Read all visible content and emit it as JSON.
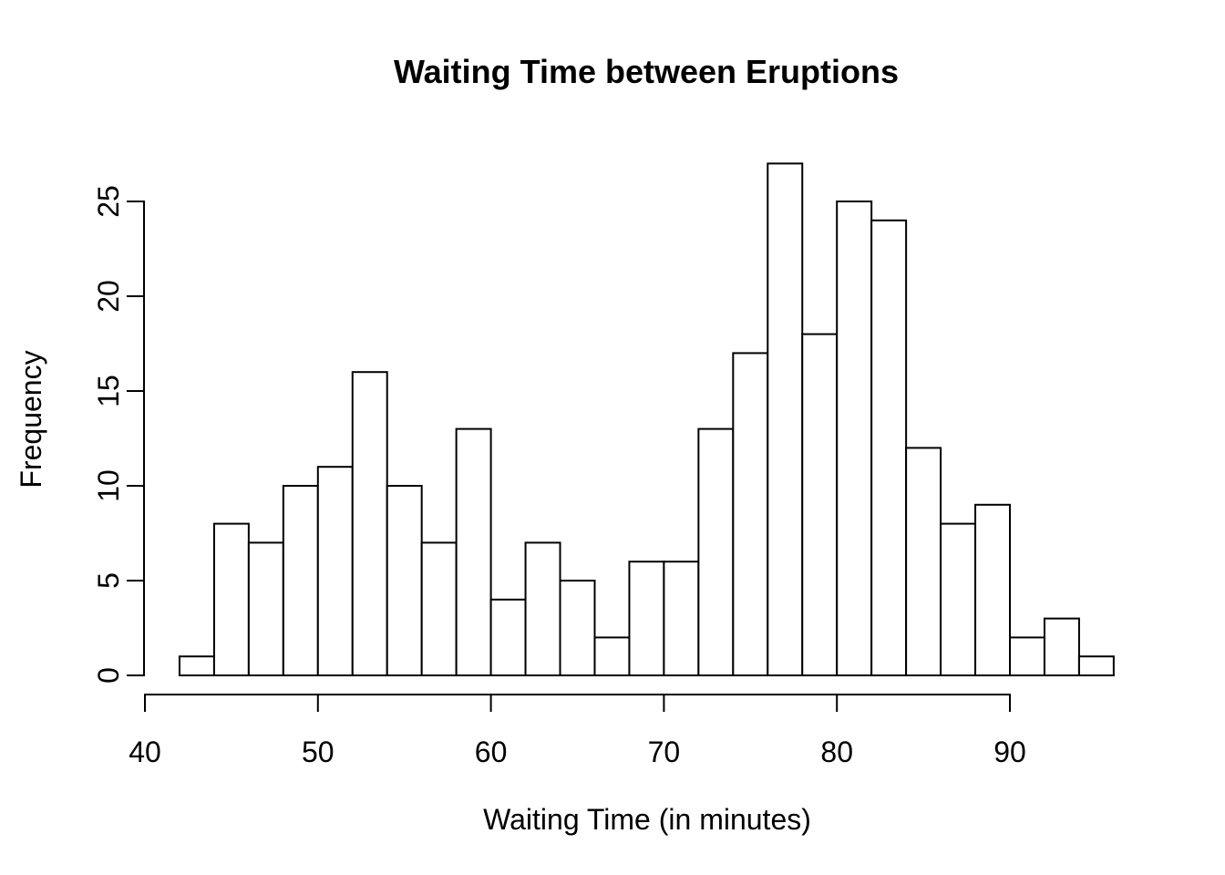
{
  "chart_data": {
    "type": "bar",
    "subtype": "histogram",
    "title": "Waiting Time between Eruptions",
    "xlabel": "Waiting Time (in minutes)",
    "ylabel": "Frequency",
    "bin_start": 42,
    "bin_width": 2,
    "bin_edges": [
      42,
      44,
      46,
      48,
      50,
      52,
      54,
      56,
      58,
      60,
      62,
      64,
      66,
      68,
      70,
      72,
      74,
      76,
      78,
      80,
      82,
      84,
      86,
      88,
      90,
      92,
      94,
      96
    ],
    "counts": [
      1,
      8,
      7,
      10,
      11,
      16,
      10,
      7,
      13,
      4,
      7,
      5,
      2,
      6,
      6,
      13,
      17,
      27,
      18,
      25,
      24,
      12,
      8,
      9,
      2,
      3,
      1
    ],
    "total_observations": 272,
    "x_ticks": [
      40,
      50,
      60,
      70,
      80,
      90
    ],
    "y_ticks": [
      0,
      5,
      10,
      15,
      20,
      25
    ],
    "xlim": [
      40,
      96
    ],
    "ylim": [
      0,
      27
    ],
    "grid": "off",
    "legend": "none",
    "colors": {
      "background": "#ffffff",
      "bar_fill": "#ffffff",
      "bar_stroke": "#000000",
      "axis": "#000000",
      "text": "#000000"
    }
  }
}
